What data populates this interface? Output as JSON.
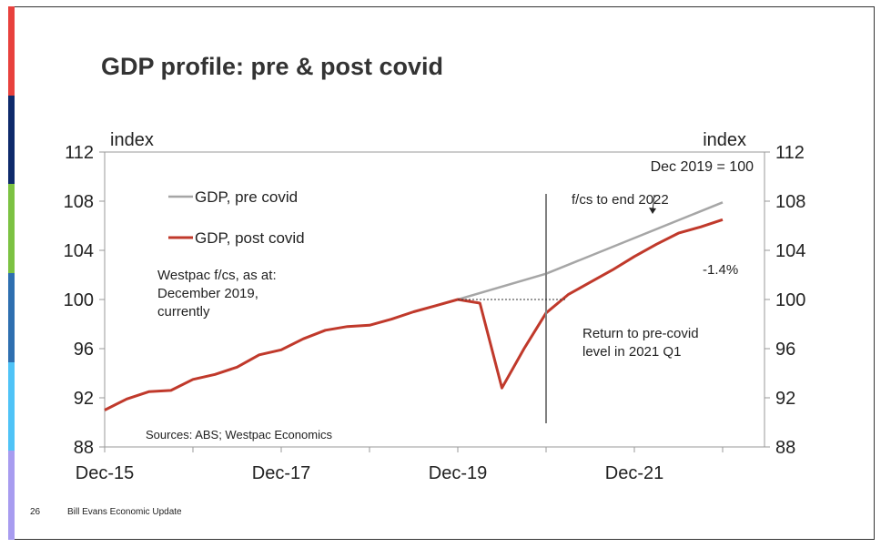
{
  "slide": {
    "title": "GDP profile: pre & post covid",
    "page_number": "26",
    "footer_text": "Bill Evans Economic Update",
    "accent_colors": [
      "#e8413d",
      "#0e2a6b",
      "#7cc242",
      "#2e6fb0",
      "#4fc3f7",
      "#a89cf0"
    ]
  },
  "chart_data": {
    "type": "line",
    "left_axis_label": "index",
    "right_axis_label": "index",
    "base_note": "Dec 2019 = 100",
    "x_ticks": [
      "Dec-15",
      "Dec-17",
      "Dec-19",
      "Dec-21"
    ],
    "ylim": [
      88,
      112
    ],
    "y_ticks": [
      88,
      92,
      96,
      100,
      104,
      108,
      112
    ],
    "grid": false,
    "legend_position": "top-left",
    "series": [
      {
        "name": "GDP, pre covid",
        "color": "#a6a6a6",
        "x": [
          "Dec-19",
          "Dec-20",
          "Dec-21",
          "Dec-22"
        ],
        "values": [
          100.0,
          102.1,
          105.0,
          107.9
        ]
      },
      {
        "name": "GDP, post covid",
        "color": "#c0392b",
        "x": [
          "Dec-15",
          "Mar-16",
          "Jun-16",
          "Sep-16",
          "Dec-16",
          "Mar-17",
          "Jun-17",
          "Sep-17",
          "Dec-17",
          "Mar-18",
          "Jun-18",
          "Sep-18",
          "Dec-18",
          "Mar-19",
          "Jun-19",
          "Sep-19",
          "Dec-19",
          "Mar-20",
          "Jun-20",
          "Sep-20",
          "Dec-20",
          "Mar-21",
          "Jun-21",
          "Sep-21",
          "Dec-21",
          "Mar-22",
          "Jun-22",
          "Sep-22",
          "Dec-22"
        ],
        "values": [
          91.0,
          91.9,
          92.5,
          92.6,
          93.5,
          93.9,
          94.5,
          95.5,
          95.9,
          96.8,
          97.5,
          97.8,
          97.9,
          98.4,
          99.0,
          99.5,
          100.0,
          99.7,
          92.8,
          96.0,
          98.9,
          100.4,
          101.4,
          102.4,
          103.5,
          104.5,
          105.4,
          105.9,
          106.5
        ]
      }
    ],
    "annotations": {
      "westpac_fcs": [
        "Westpac f/cs, as at:",
        "December 2019,",
        "currently"
      ],
      "forecast_marker": "f/cs to end 2022",
      "gap_label": "-1.4%",
      "return_note": [
        "Return to pre-covid",
        "level in 2021 Q1"
      ],
      "sources": "Sources: ABS; Westpac Economics"
    }
  }
}
